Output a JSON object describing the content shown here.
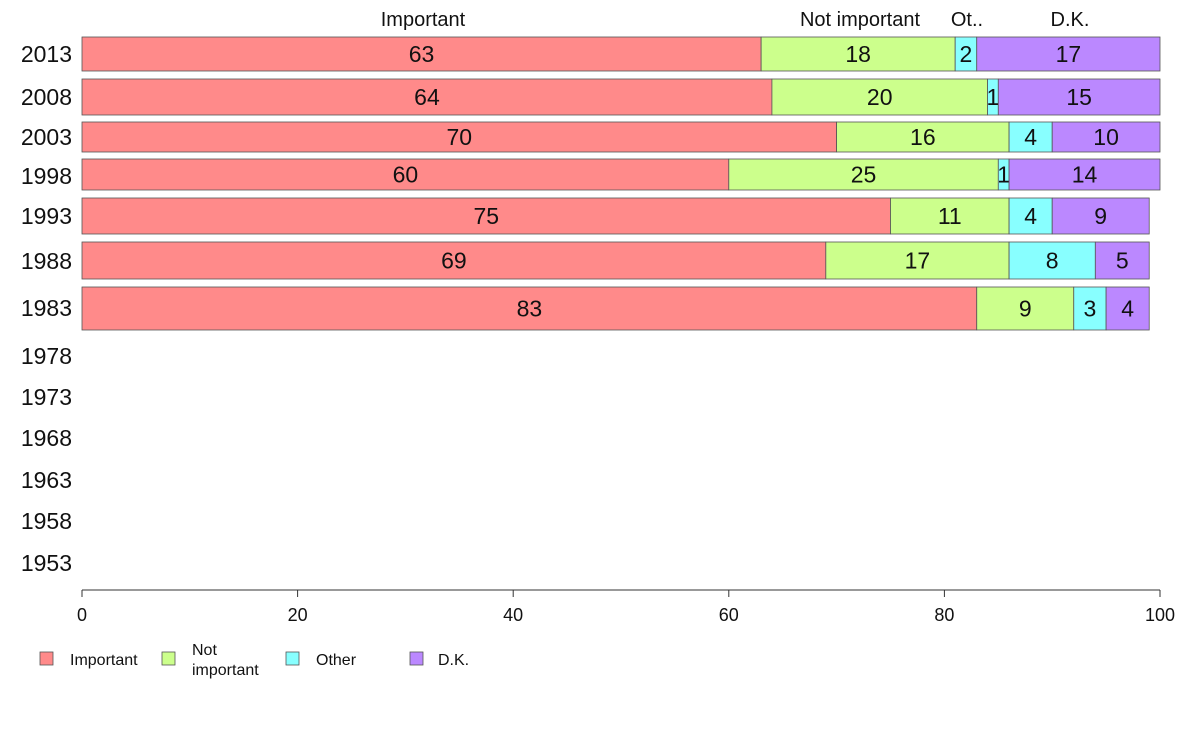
{
  "chart_data": {
    "type": "bar",
    "orientation": "horizontal",
    "stacked": true,
    "categories": [
      "2013",
      "2008",
      "2003",
      "1998",
      "1993",
      "1988",
      "1983",
      "1978",
      "1973",
      "1968",
      "1963",
      "1958",
      "1953"
    ],
    "series": [
      {
        "name": "Important",
        "color": "#ff8a8a",
        "values": [
          63,
          64,
          70,
          60,
          75,
          69,
          83,
          null,
          null,
          null,
          null,
          null,
          null
        ]
      },
      {
        "name": "Not important",
        "color": "#ccff8c",
        "values": [
          18,
          20,
          16,
          25,
          11,
          17,
          9,
          null,
          null,
          null,
          null,
          null,
          null
        ]
      },
      {
        "name": "Other",
        "color": "#88ffff",
        "values": [
          2,
          1,
          4,
          1,
          4,
          8,
          3,
          null,
          null,
          null,
          null,
          null,
          null
        ]
      },
      {
        "name": "D.K.",
        "color": "#bb88ff",
        "values": [
          17,
          15,
          10,
          14,
          9,
          5,
          4,
          null,
          null,
          null,
          null,
          null,
          null
        ]
      }
    ],
    "column_headers": [
      "Important",
      "Not important",
      "Ot..",
      "D.K."
    ],
    "legend_labels": [
      [
        "Important"
      ],
      [
        "Not",
        "important"
      ],
      [
        "Other"
      ],
      [
        "D.K."
      ]
    ],
    "xlim": [
      0,
      100
    ],
    "xticks": [
      0,
      20,
      40,
      60,
      80,
      100
    ],
    "legend_position": "bottom-left",
    "grid": false
  }
}
